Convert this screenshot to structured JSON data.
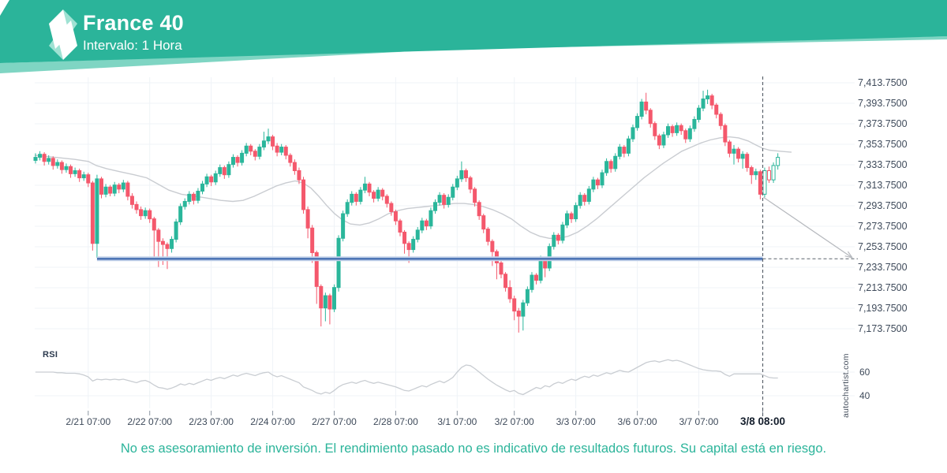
{
  "header": {
    "title": "France 40",
    "subtitle": "Intervalo: 1 Hora"
  },
  "watermark": "autochartist.com",
  "footer": {
    "disclaimer": "No es asesoramiento de inversión. El rendimiento pasado no es indicativo de resultados futuros. Su capital está en riesgo."
  },
  "colors": {
    "banner": "#2bb49a",
    "banner_accent": "#7fd5c3",
    "logo_light": "#9fe2d3",
    "logo_white": "#ffffff",
    "candle_up": "#2ab69b",
    "candle_down": "#f4586c",
    "ma_line": "#c9ccd1",
    "support_core": "#4f76b6",
    "support_halo": "#c3d2ea",
    "grid": "#eff3f7",
    "axis_text": "#3e4a5a",
    "axis_text_bold": "#141e2c",
    "dashed": "#5c636d",
    "arrow": "#b5b8bd",
    "rsi_line": "#c9cdd2",
    "tick": "#8b95a1"
  },
  "chart_data": {
    "type": "candlestick",
    "title": "France 40",
    "interval": "1 Hora",
    "y_axis": {
      "max": 7413.75,
      "min": 7173.75,
      "step": 20,
      "labels": [
        "7,413.7500",
        "7,393.7500",
        "7,373.7500",
        "7,353.7500",
        "7,333.7500",
        "7,313.7500",
        "7,293.7500",
        "7,273.7500",
        "7,253.7500",
        "7,233.7500",
        "7,213.7500",
        "7,193.7500",
        "7,173.7500"
      ]
    },
    "x_axis": {
      "labels": [
        "2/21 07:00",
        "2/22 07:00",
        "2/23 07:00",
        "2/24 07:00",
        "2/27 07:00",
        "2/28 07:00",
        "3/1 07:00",
        "3/2 07:00",
        "3/3 07:00",
        "3/6 07:00",
        "3/7 07:00"
      ],
      "tick_candle_indices": [
        12,
        26,
        40,
        54,
        68,
        82,
        96,
        109,
        123,
        137,
        151
      ],
      "last_label": "3/8 08:00"
    },
    "support_line": {
      "price": 7242,
      "start_index": 14
    },
    "forecast_arrow": {
      "from_price": 7302,
      "to_price": 7243
    },
    "hollow_from_index": 166,
    "candles": [
      [
        7338,
        7345,
        7335,
        7341
      ],
      [
        7341,
        7347,
        7338,
        7344
      ],
      [
        7344,
        7346,
        7333,
        7337
      ],
      [
        7337,
        7343,
        7334,
        7340
      ],
      [
        7340,
        7342,
        7329,
        7333
      ],
      [
        7333,
        7339,
        7330,
        7336
      ],
      [
        7336,
        7338,
        7325,
        7329
      ],
      [
        7329,
        7335,
        7326,
        7332
      ],
      [
        7332,
        7334,
        7321,
        7325
      ],
      [
        7325,
        7331,
        7322,
        7328
      ],
      [
        7328,
        7330,
        7317,
        7321
      ],
      [
        7321,
        7327,
        7318,
        7324
      ],
      [
        7324,
        7326,
        7312,
        7316
      ],
      [
        7316,
        7318,
        7250,
        7257
      ],
      [
        7257,
        7324,
        7243,
        7320
      ],
      [
        7320,
        7322,
        7301,
        7305
      ],
      [
        7305,
        7315,
        7302,
        7312
      ],
      [
        7312,
        7314,
        7303,
        7306
      ],
      [
        7306,
        7317,
        7303,
        7314
      ],
      [
        7314,
        7316,
        7306,
        7310
      ],
      [
        7310,
        7319,
        7307,
        7316
      ],
      [
        7316,
        7318,
        7299,
        7303
      ],
      [
        7303,
        7306,
        7291,
        7295
      ],
      [
        7295,
        7298,
        7286,
        7290
      ],
      [
        7290,
        7293,
        7280,
        7284
      ],
      [
        7284,
        7292,
        7281,
        7289
      ],
      [
        7289,
        7291,
        7277,
        7281
      ],
      [
        7281,
        7283,
        7240,
        7270
      ],
      [
        7270,
        7272,
        7234,
        7259
      ],
      [
        7259,
        7262,
        7236,
        7256
      ],
      [
        7256,
        7258,
        7232,
        7252
      ],
      [
        7252,
        7264,
        7248,
        7261
      ],
      [
        7261,
        7281,
        7258,
        7278
      ],
      [
        7278,
        7296,
        7275,
        7293
      ],
      [
        7293,
        7301,
        7290,
        7298
      ],
      [
        7298,
        7308,
        7295,
        7305
      ],
      [
        7305,
        7307,
        7295,
        7299
      ],
      [
        7299,
        7311,
        7296,
        7308
      ],
      [
        7308,
        7318,
        7305,
        7315
      ],
      [
        7315,
        7325,
        7312,
        7322
      ],
      [
        7322,
        7324,
        7313,
        7317
      ],
      [
        7317,
        7328,
        7314,
        7325
      ],
      [
        7325,
        7334,
        7322,
        7331
      ],
      [
        7331,
        7333,
        7320,
        7324
      ],
      [
        7324,
        7337,
        7321,
        7334
      ],
      [
        7334,
        7344,
        7331,
        7341
      ],
      [
        7341,
        7343,
        7332,
        7336
      ],
      [
        7336,
        7348,
        7333,
        7345
      ],
      [
        7345,
        7355,
        7342,
        7352
      ],
      [
        7352,
        7354,
        7343,
        7347
      ],
      [
        7347,
        7349,
        7338,
        7342
      ],
      [
        7342,
        7354,
        7339,
        7351
      ],
      [
        7351,
        7366,
        7348,
        7357
      ],
      [
        7357,
        7369,
        7354,
        7361
      ],
      [
        7361,
        7363,
        7348,
        7352
      ],
      [
        7352,
        7355,
        7342,
        7346
      ],
      [
        7346,
        7354,
        7343,
        7351
      ],
      [
        7351,
        7353,
        7339,
        7343
      ],
      [
        7343,
        7345,
        7332,
        7336
      ],
      [
        7336,
        7339,
        7324,
        7328
      ],
      [
        7328,
        7331,
        7315,
        7319
      ],
      [
        7319,
        7322,
        7286,
        7290
      ],
      [
        7290,
        7293,
        7262,
        7272
      ],
      [
        7272,
        7275,
        7238,
        7248
      ],
      [
        7248,
        7250,
        7198,
        7215
      ],
      [
        7215,
        7217,
        7176,
        7194
      ],
      [
        7194,
        7209,
        7181,
        7206
      ],
      [
        7206,
        7208,
        7178,
        7193
      ],
      [
        7193,
        7217,
        7190,
        7214
      ],
      [
        7214,
        7265,
        7210,
        7262
      ],
      [
        7262,
        7289,
        7259,
        7286
      ],
      [
        7286,
        7300,
        7283,
        7297
      ],
      [
        7297,
        7308,
        7294,
        7305
      ],
      [
        7305,
        7307,
        7294,
        7298
      ],
      [
        7298,
        7312,
        7295,
        7309
      ],
      [
        7309,
        7322,
        7306,
        7315
      ],
      [
        7315,
        7317,
        7303,
        7307
      ],
      [
        7307,
        7309,
        7297,
        7301
      ],
      [
        7301,
        7312,
        7298,
        7309
      ],
      [
        7309,
        7311,
        7299,
        7303
      ],
      [
        7303,
        7305,
        7292,
        7296
      ],
      [
        7296,
        7298,
        7284,
        7288
      ],
      [
        7288,
        7290,
        7275,
        7279
      ],
      [
        7279,
        7281,
        7264,
        7268
      ],
      [
        7268,
        7270,
        7247,
        7257
      ],
      [
        7257,
        7259,
        7238,
        7251
      ],
      [
        7251,
        7264,
        7248,
        7261
      ],
      [
        7261,
        7273,
        7258,
        7270
      ],
      [
        7270,
        7282,
        7267,
        7279
      ],
      [
        7279,
        7281,
        7270,
        7274
      ],
      [
        7274,
        7292,
        7271,
        7289
      ],
      [
        7289,
        7300,
        7286,
        7297
      ],
      [
        7297,
        7307,
        7294,
        7304
      ],
      [
        7304,
        7306,
        7291,
        7295
      ],
      [
        7295,
        7305,
        7292,
        7302
      ],
      [
        7302,
        7315,
        7299,
        7312
      ],
      [
        7312,
        7323,
        7309,
        7320
      ],
      [
        7320,
        7337,
        7317,
        7328
      ],
      [
        7328,
        7330,
        7317,
        7321
      ],
      [
        7321,
        7323,
        7306,
        7310
      ],
      [
        7310,
        7312,
        7293,
        7297
      ],
      [
        7297,
        7299,
        7280,
        7284
      ],
      [
        7284,
        7286,
        7267,
        7271
      ],
      [
        7271,
        7273,
        7255,
        7259
      ],
      [
        7259,
        7261,
        7235,
        7249
      ],
      [
        7249,
        7251,
        7222,
        7238
      ],
      [
        7238,
        7240,
        7223,
        7227
      ],
      [
        7227,
        7229,
        7210,
        7214
      ],
      [
        7214,
        7221,
        7199,
        7203
      ],
      [
        7203,
        7206,
        7182,
        7191
      ],
      [
        7191,
        7194,
        7170,
        7186
      ],
      [
        7186,
        7202,
        7172,
        7199
      ],
      [
        7199,
        7215,
        7196,
        7212
      ],
      [
        7212,
        7229,
        7209,
        7226
      ],
      [
        7226,
        7228,
        7217,
        7221
      ],
      [
        7221,
        7245,
        7218,
        7242
      ],
      [
        7242,
        7244,
        7224,
        7233
      ],
      [
        7233,
        7257,
        7230,
        7254
      ],
      [
        7254,
        7268,
        7251,
        7265
      ],
      [
        7265,
        7267,
        7256,
        7260
      ],
      [
        7260,
        7278,
        7257,
        7275
      ],
      [
        7275,
        7289,
        7272,
        7286
      ],
      [
        7286,
        7288,
        7277,
        7281
      ],
      [
        7281,
        7297,
        7278,
        7294
      ],
      [
        7294,
        7307,
        7291,
        7304
      ],
      [
        7304,
        7306,
        7294,
        7298
      ],
      [
        7298,
        7313,
        7295,
        7310
      ],
      [
        7310,
        7322,
        7307,
        7319
      ],
      [
        7319,
        7321,
        7310,
        7314
      ],
      [
        7314,
        7329,
        7311,
        7326
      ],
      [
        7326,
        7340,
        7323,
        7337
      ],
      [
        7337,
        7339,
        7326,
        7330
      ],
      [
        7330,
        7345,
        7327,
        7342
      ],
      [
        7342,
        7354,
        7339,
        7351
      ],
      [
        7351,
        7353,
        7341,
        7345
      ],
      [
        7345,
        7362,
        7342,
        7359
      ],
      [
        7359,
        7373,
        7356,
        7370
      ],
      [
        7370,
        7384,
        7367,
        7381
      ],
      [
        7381,
        7398,
        7378,
        7395
      ],
      [
        7395,
        7404,
        7383,
        7387
      ],
      [
        7387,
        7389,
        7370,
        7374
      ],
      [
        7374,
        7376,
        7358,
        7362
      ],
      [
        7362,
        7364,
        7349,
        7353
      ],
      [
        7353,
        7366,
        7350,
        7363
      ],
      [
        7363,
        7374,
        7360,
        7371
      ],
      [
        7371,
        7373,
        7361,
        7365
      ],
      [
        7365,
        7375,
        7362,
        7372
      ],
      [
        7372,
        7374,
        7363,
        7367
      ],
      [
        7367,
        7369,
        7355,
        7359
      ],
      [
        7359,
        7372,
        7356,
        7369
      ],
      [
        7369,
        7381,
        7366,
        7378
      ],
      [
        7378,
        7392,
        7375,
        7389
      ],
      [
        7389,
        7406,
        7386,
        7398
      ],
      [
        7398,
        7407,
        7393,
        7401
      ],
      [
        7401,
        7403,
        7388,
        7392
      ],
      [
        7392,
        7394,
        7379,
        7383
      ],
      [
        7383,
        7385,
        7368,
        7372
      ],
      [
        7372,
        7374,
        7352,
        7356
      ],
      [
        7356,
        7358,
        7341,
        7345
      ],
      [
        7345,
        7353,
        7334,
        7349
      ],
      [
        7349,
        7351,
        7336,
        7340
      ],
      [
        7340,
        7347,
        7330,
        7344
      ],
      [
        7344,
        7346,
        7327,
        7331
      ],
      [
        7331,
        7333,
        7315,
        7324
      ],
      [
        7324,
        7330,
        7319,
        7327
      ],
      [
        7327,
        7329,
        7300,
        7305
      ],
      [
        7305,
        7331,
        7302,
        7328
      ],
      [
        7328,
        7332,
        7316,
        7319
      ],
      [
        7319,
        7336,
        7316,
        7333
      ],
      [
        7333,
        7345,
        7329,
        7341
      ]
    ],
    "ma": [
      [
        44,
        7343
      ],
      [
        70,
        7341
      ],
      [
        95,
        7339
      ],
      [
        112,
        7337
      ],
      [
        122,
        7333
      ],
      [
        135,
        7330
      ],
      [
        152,
        7327
      ],
      [
        170,
        7324
      ],
      [
        186,
        7321
      ],
      [
        200,
        7315
      ],
      [
        214,
        7309
      ],
      [
        230,
        7305
      ],
      [
        248,
        7303
      ],
      [
        264,
        7301
      ],
      [
        280,
        7299
      ],
      [
        295,
        7298
      ],
      [
        308,
        7299
      ],
      [
        322,
        7303
      ],
      [
        336,
        7308
      ],
      [
        350,
        7313
      ],
      [
        362,
        7316
      ],
      [
        374,
        7318
      ],
      [
        384,
        7316
      ],
      [
        394,
        7311
      ],
      [
        404,
        7303
      ],
      [
        414,
        7294
      ],
      [
        424,
        7286
      ],
      [
        434,
        7280
      ],
      [
        444,
        7276
      ],
      [
        456,
        7275
      ],
      [
        468,
        7277
      ],
      [
        480,
        7281
      ],
      [
        492,
        7286
      ],
      [
        504,
        7289
      ],
      [
        516,
        7291
      ],
      [
        528,
        7292
      ],
      [
        540,
        7293
      ],
      [
        552,
        7294
      ],
      [
        564,
        7295
      ],
      [
        576,
        7296
      ],
      [
        588,
        7296
      ],
      [
        600,
        7295
      ],
      [
        612,
        7293
      ],
      [
        624,
        7290
      ],
      [
        636,
        7286
      ],
      [
        648,
        7281
      ],
      [
        660,
        7274
      ],
      [
        672,
        7268
      ],
      [
        684,
        7264
      ],
      [
        696,
        7262
      ],
      [
        708,
        7262
      ],
      [
        720,
        7264
      ],
      [
        732,
        7268
      ],
      [
        744,
        7274
      ],
      [
        756,
        7281
      ],
      [
        768,
        7289
      ],
      [
        780,
        7297
      ],
      [
        792,
        7305
      ],
      [
        804,
        7313
      ],
      [
        816,
        7321
      ],
      [
        828,
        7328
      ],
      [
        840,
        7335
      ],
      [
        852,
        7341
      ],
      [
        864,
        7347
      ],
      [
        876,
        7351
      ],
      [
        888,
        7355
      ],
      [
        900,
        7358
      ],
      [
        912,
        7360
      ],
      [
        924,
        7361
      ],
      [
        936,
        7360
      ],
      [
        948,
        7357
      ],
      [
        958,
        7353
      ],
      [
        966,
        7350
      ],
      [
        975,
        7348
      ],
      [
        988,
        7347
      ],
      [
        1003,
        7346
      ]
    ],
    "rsi": {
      "label": "RSI",
      "guides": [
        60,
        40
      ],
      "values": [
        60,
        60,
        60,
        60,
        60,
        59.5,
        59.5,
        59,
        59,
        59,
        58.5,
        57.5,
        56,
        52.5,
        54,
        53.5,
        54,
        53.5,
        54,
        53.5,
        54,
        53,
        52,
        51,
        52.5,
        53,
        51.5,
        49,
        47,
        46.5,
        45.5,
        46.5,
        48,
        50,
        49,
        50.5,
        49.5,
        51,
        52.5,
        54,
        53,
        54.5,
        55.5,
        54.5,
        56,
        57.5,
        56.5,
        58,
        59,
        58,
        57,
        58.5,
        59.5,
        60,
        57.5,
        56,
        57,
        55.5,
        54,
        52.5,
        51,
        47.5,
        46,
        44.5,
        42.5,
        41.5,
        43,
        42,
        44.5,
        47.5,
        49.5,
        50.5,
        51.5,
        50.5,
        52,
        53,
        51.5,
        50.5,
        51.5,
        50.5,
        49.5,
        48.5,
        47.5,
        46,
        44.5,
        44,
        45.5,
        47,
        48.5,
        47.5,
        49.5,
        51,
        52.5,
        51,
        53,
        55.5,
        60,
        64,
        66,
        65.5,
        63,
        60,
        57,
        54,
        51.5,
        49,
        47,
        45,
        43.5,
        44.5,
        42,
        41,
        43,
        45,
        47,
        46,
        48.5,
        47.5,
        50,
        51.5,
        50.5,
        52.5,
        54,
        53,
        55,
        56.5,
        55.5,
        57.5,
        56.5,
        58,
        59.5,
        58.5,
        60,
        61.5,
        60.5,
        60,
        62,
        64,
        66,
        68,
        69,
        69.5,
        68.5,
        69.5,
        70.5,
        69.5,
        70,
        69,
        67.5,
        66,
        64.5,
        63,
        62,
        61.5,
        61,
        61,
        60.5,
        58,
        56.5,
        58.5,
        58.5,
        58.5,
        58.5,
        58.5,
        58.5,
        58.5,
        57,
        55.5,
        55,
        55
      ]
    }
  }
}
